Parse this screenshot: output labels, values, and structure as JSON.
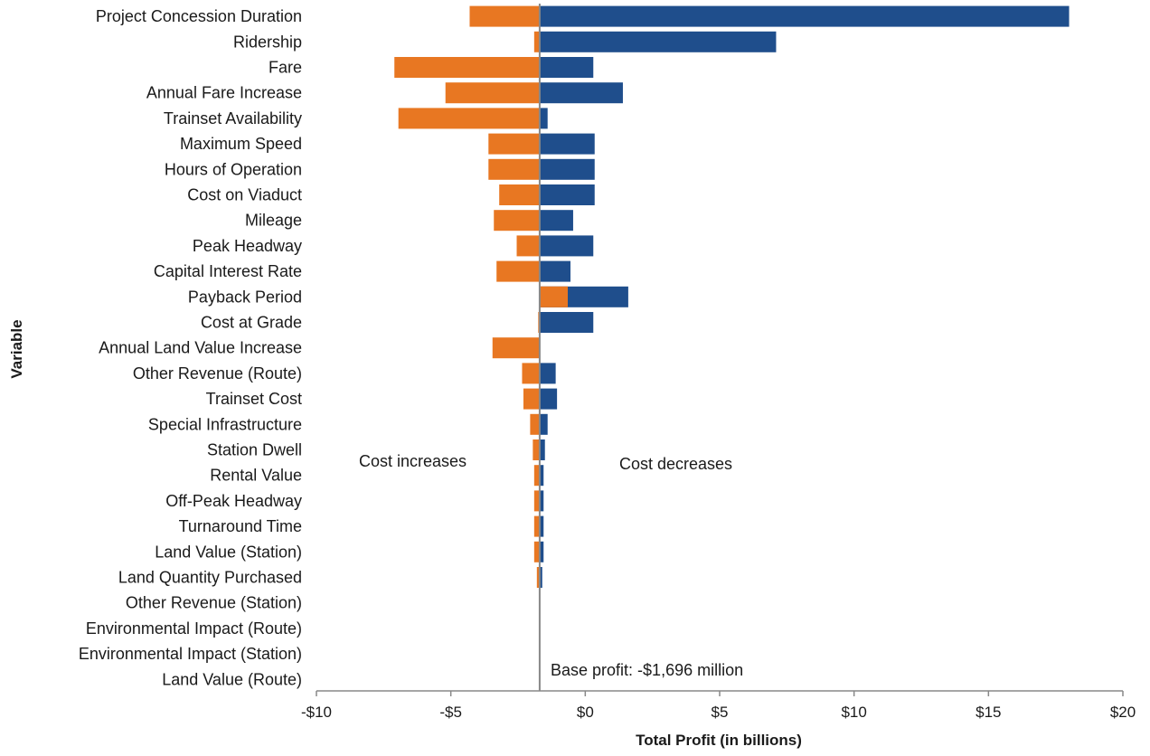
{
  "chart_data": {
    "type": "bar",
    "orientation": "horizontal",
    "style": "tornado",
    "base": -1.696,
    "categories": [
      "Project Concession Duration",
      "Ridership",
      "Fare",
      "Annual Fare Increase",
      "Trainset Availability",
      "Maximum Speed",
      "Hours of Operation",
      "Cost on Viaduct",
      "Mileage",
      "Peak Headway",
      "Capital Interest Rate",
      "Payback Period",
      "Cost at Grade",
      "Annual Land Value Increase",
      "Other Revenue (Route)",
      "Trainset Cost",
      "Special Infrastructure",
      "Station Dwell",
      "Rental Value",
      "Off-Peak Headway",
      "Turnaround Time",
      "Land Value (Station)",
      "Land Quantity Purchased",
      "Other Revenue (Station)",
      "Environmental Impact (Route)",
      "Environmental Impact (Station)",
      "Land Value (Route)"
    ],
    "series": [
      {
        "color": "#E87722",
        "values": [
          -4.3,
          -1.9,
          -7.1,
          -5.2,
          -6.95,
          -3.6,
          -3.6,
          -3.2,
          -3.4,
          -2.55,
          -3.3,
          -0.65,
          -1.75,
          -3.45,
          -2.35,
          -2.3,
          -2.05,
          -1.95,
          -1.9,
          -1.9,
          -1.9,
          -1.9,
          -1.8,
          -1.72,
          -1.72,
          -1.72,
          -1.72
        ]
      },
      {
        "color": "#1F4E8C",
        "values": [
          18.0,
          7.1,
          0.3,
          1.4,
          -1.4,
          0.35,
          0.35,
          0.35,
          -0.45,
          0.3,
          -0.55,
          1.6,
          0.3,
          -1.696,
          -1.1,
          -1.05,
          -1.4,
          -1.5,
          -1.55,
          -1.55,
          -1.55,
          -1.55,
          -1.6,
          -1.696,
          -1.696,
          -1.696,
          -1.696
        ]
      }
    ],
    "xlim": [
      -10,
      20
    ],
    "xticks": [
      "-$10",
      "-$5",
      "$0",
      "$5",
      "$10",
      "$15",
      "$20"
    ],
    "xtick_values": [
      -10,
      -5,
      0,
      5,
      10,
      15,
      20
    ],
    "xlabel": "Total Profit (in billions)",
    "ylabel": "Variable",
    "title": "",
    "annotations": {
      "left": "Cost increases",
      "right": "Cost decreases",
      "base": "Base profit: -$1,696 million"
    }
  }
}
